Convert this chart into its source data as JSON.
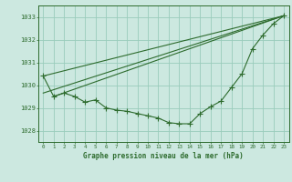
{
  "bg_color": "#cce8e0",
  "grid_color": "#99ccbb",
  "line_color": "#2d6b2d",
  "title": "Graphe pression niveau de la mer (hPa)",
  "xlim": [
    -0.5,
    23.5
  ],
  "ylim": [
    1027.5,
    1033.5
  ],
  "yticks": [
    1028,
    1029,
    1030,
    1031,
    1032,
    1033
  ],
  "xticks": [
    0,
    1,
    2,
    3,
    4,
    5,
    6,
    7,
    8,
    9,
    10,
    11,
    12,
    13,
    14,
    15,
    16,
    17,
    18,
    19,
    20,
    21,
    22,
    23
  ],
  "series1_x": [
    0,
    1,
    2,
    3,
    4,
    5,
    6,
    7,
    8,
    9,
    10,
    11,
    12,
    13,
    14,
    15,
    16,
    17,
    18,
    19,
    20,
    21,
    22,
    23
  ],
  "series1_y": [
    1030.4,
    1029.5,
    1029.65,
    1029.5,
    1029.25,
    1029.35,
    1029.0,
    1028.9,
    1028.85,
    1028.75,
    1028.65,
    1028.55,
    1028.35,
    1028.3,
    1028.3,
    1028.75,
    1029.05,
    1029.3,
    1029.9,
    1030.5,
    1031.6,
    1032.2,
    1032.7,
    1033.05
  ],
  "line1_x": [
    0,
    23
  ],
  "line1_y": [
    1030.4,
    1033.05
  ],
  "line2_x": [
    0,
    23
  ],
  "line2_y": [
    1029.65,
    1033.05
  ],
  "line3_x": [
    1,
    23
  ],
  "line3_y": [
    1029.5,
    1033.05
  ]
}
